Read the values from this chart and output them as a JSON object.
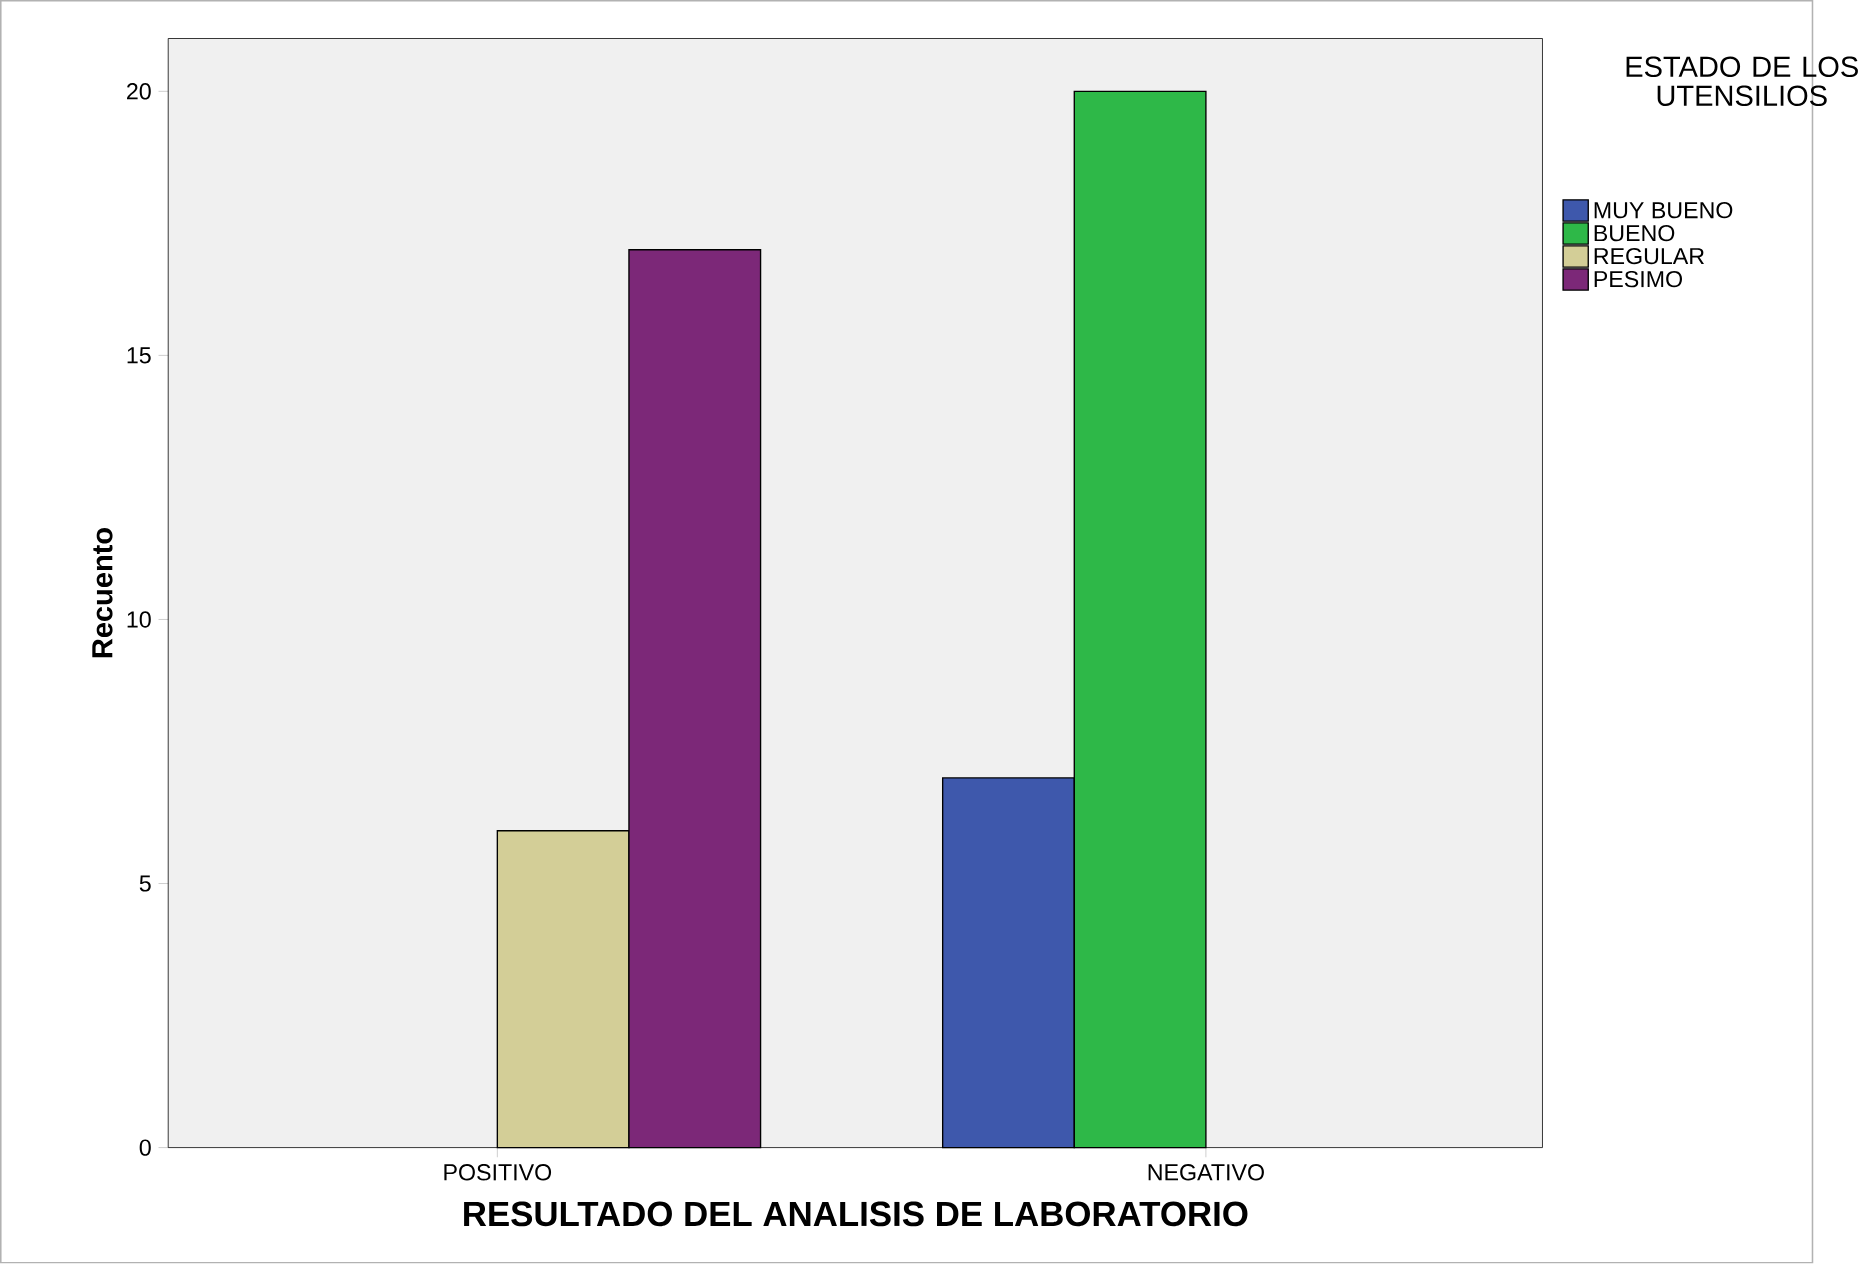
{
  "chart_data": {
    "type": "bar",
    "xlabel": "RESULTADO DEL ANALISIS DE LABORATORIO",
    "ylabel": "Recuento",
    "legend_title": "ESTADO DE LOS UTENSILIOS",
    "categories": [
      "POSITIVO",
      "NEGATIVO"
    ],
    "series": [
      {
        "name": "MUY BUENO",
        "color": "#3e58ac",
        "values": [
          null,
          7
        ]
      },
      {
        "name": "BUENO",
        "color": "#2eb848",
        "values": [
          null,
          20
        ]
      },
      {
        "name": "REGULAR",
        "color": "#d3ce97",
        "values": [
          6,
          null
        ]
      },
      {
        "name": "PESIMO",
        "color": "#7c2878",
        "values": [
          17,
          null
        ]
      }
    ],
    "ylim": [
      0,
      21
    ],
    "yticks": [
      0,
      5,
      10,
      15,
      20
    ],
    "grid": false,
    "legend": "right"
  }
}
